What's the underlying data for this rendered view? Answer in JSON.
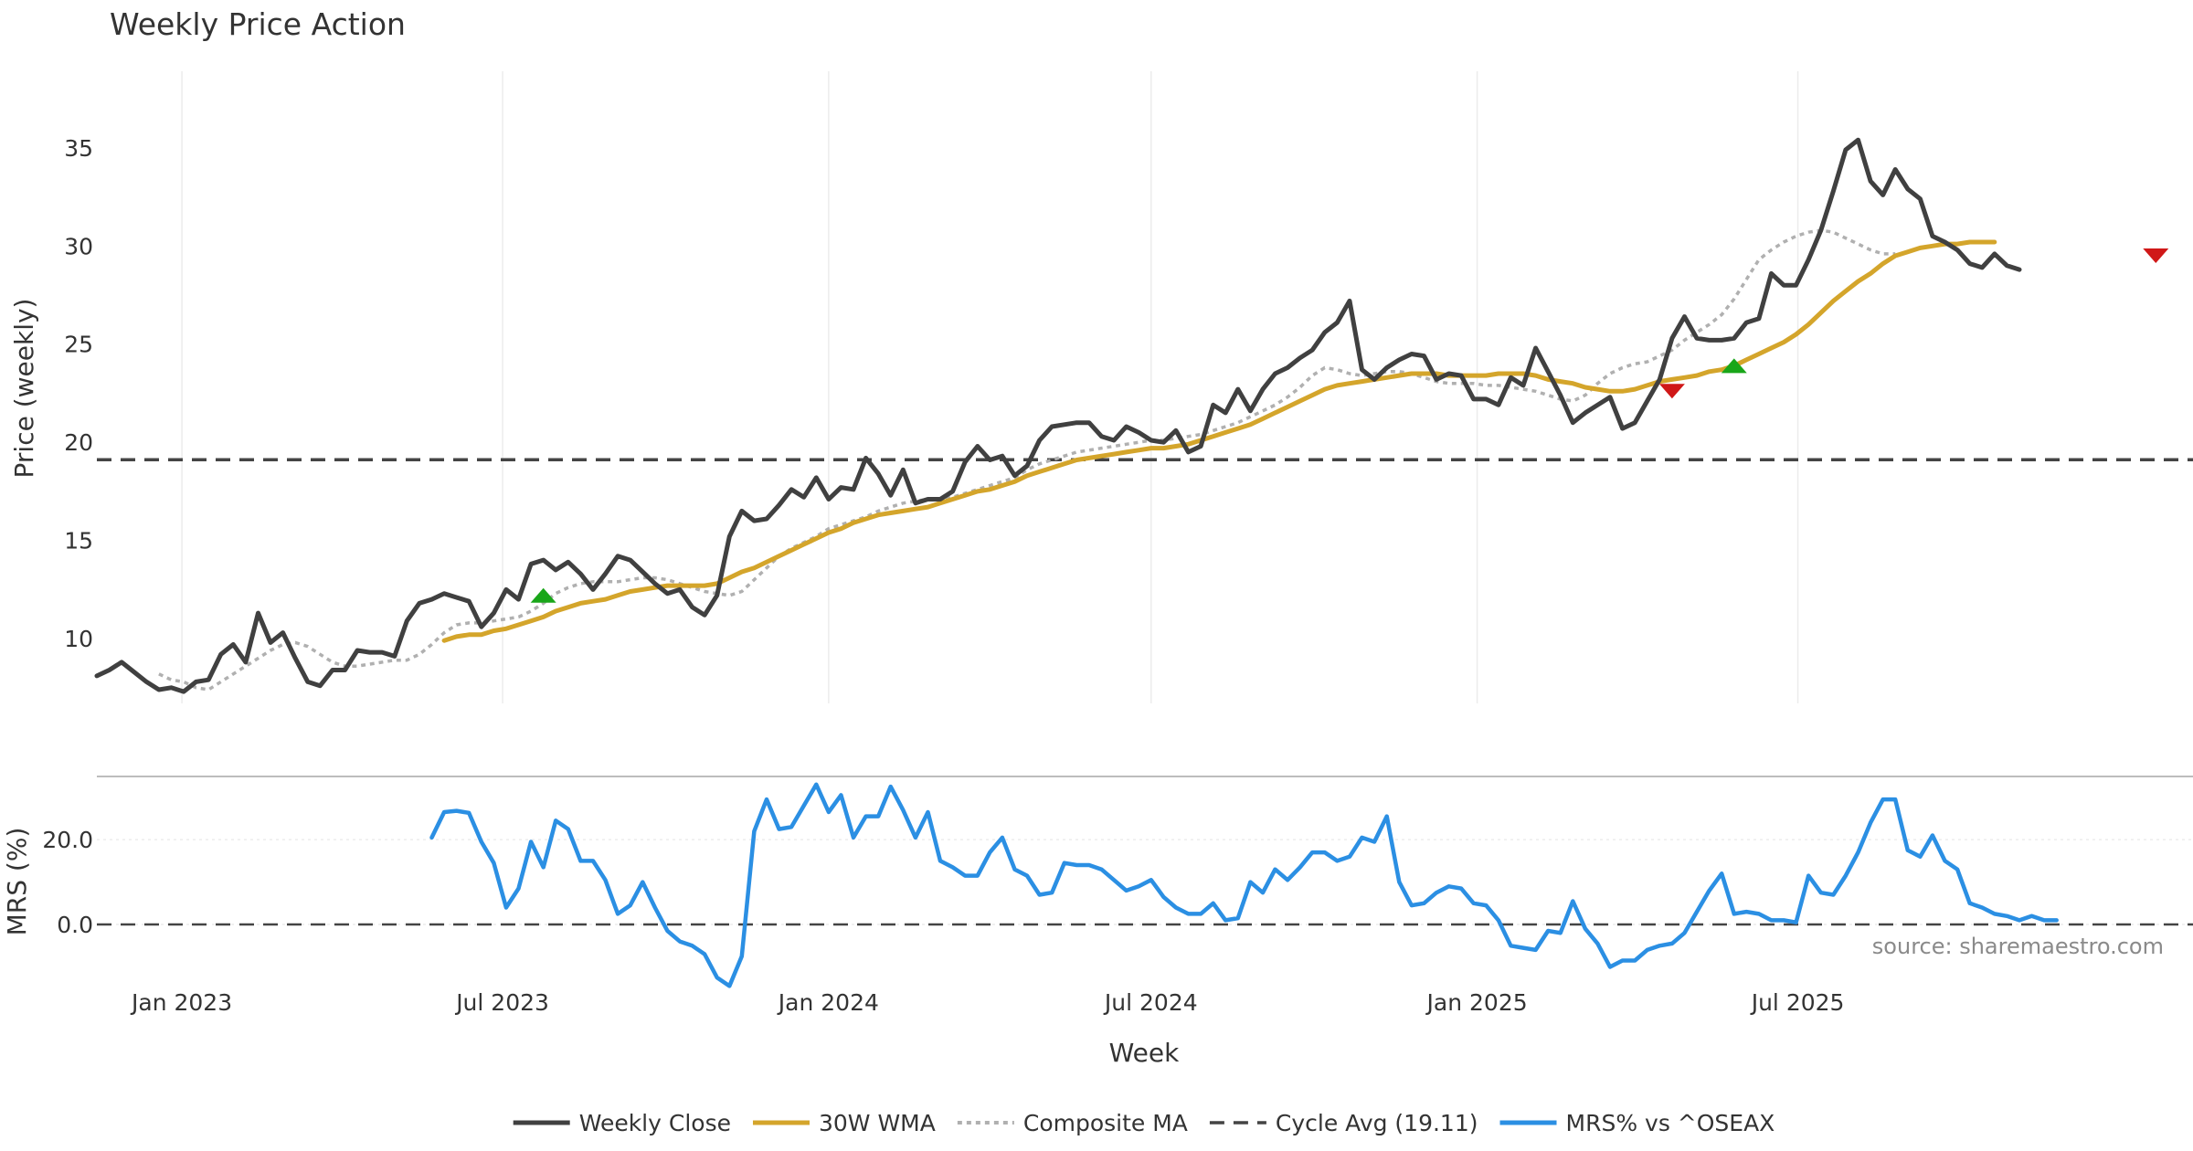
{
  "chart_data": {
    "type": "line",
    "title": "Weekly Price Action",
    "x_label": "Week",
    "x_tick_labels": [
      "Jan 2023",
      "Jul 2023",
      "Jan 2024",
      "Jul 2024",
      "Jan 2025",
      "Jul 2025"
    ],
    "x_tick_dates": [
      "2023-01-01",
      "2023-07-01",
      "2024-01-01",
      "2024-07-01",
      "2025-01-01",
      "2025-07-01"
    ],
    "x_range": [
      "2022-11-14",
      "2026-02-09"
    ],
    "price_panel": {
      "ylabel": "Price (weekly)",
      "ylim": [
        6.7,
        38.9
      ],
      "yticks": [
        10,
        15,
        20,
        25,
        30,
        35
      ],
      "series": [
        {
          "name": "Weekly Close",
          "color": "#404040",
          "style": "solid",
          "start": "2022-11-14",
          "values": [
            8.1,
            8.4,
            8.8,
            8.3,
            7.8,
            7.4,
            7.5,
            7.3,
            7.8,
            7.9,
            9.2,
            9.7,
            8.8,
            11.3,
            9.8,
            10.3,
            9.0,
            7.8,
            7.6,
            8.4,
            8.4,
            9.4,
            9.3,
            9.3,
            9.1,
            10.9,
            11.8,
            12.0,
            12.3,
            12.1,
            11.9,
            10.6,
            11.3,
            12.5,
            12.0,
            13.8,
            14.0,
            13.5,
            13.9,
            13.3,
            12.5,
            13.3,
            14.2,
            14.0,
            13.4,
            12.8,
            12.3,
            12.5,
            11.6,
            11.2,
            12.2,
            15.2,
            16.5,
            16.0,
            16.1,
            16.8,
            17.6,
            17.2,
            18.2,
            17.1,
            17.7,
            17.6,
            19.2,
            18.4,
            17.3,
            18.6,
            16.9,
            17.1,
            17.1,
            17.5,
            19.0,
            19.8,
            19.1,
            19.3,
            18.3,
            18.8,
            20.1,
            20.8,
            20.9,
            21.0,
            21.0,
            20.3,
            20.1,
            20.8,
            20.5,
            20.1,
            20.0,
            20.6,
            19.5,
            19.8,
            21.9,
            21.5,
            22.7,
            21.6,
            22.7,
            23.5,
            23.8,
            24.3,
            24.7,
            25.6,
            26.1,
            27.2,
            23.7,
            23.2,
            23.8,
            24.2,
            24.5,
            24.4,
            23.2,
            23.5,
            23.4,
            22.2,
            22.2,
            21.9,
            23.3,
            22.9,
            24.8,
            23.6,
            22.4,
            21.0,
            21.5,
            21.9,
            22.3,
            20.7,
            21.0,
            22.1,
            23.2,
            25.3,
            26.4,
            25.3,
            25.2,
            25.2,
            25.3,
            26.1,
            26.3,
            28.6,
            28.0,
            28.0,
            29.3,
            30.8,
            32.8,
            34.9,
            35.4,
            33.3,
            32.6,
            33.9,
            32.9,
            32.4,
            30.5,
            30.2,
            29.8,
            29.1,
            28.9,
            29.6,
            29.0,
            28.8
          ]
        },
        {
          "name": "30W WMA",
          "color": "#d4a52b",
          "style": "solid",
          "start": "2023-05-29",
          "values": [
            9.9,
            10.1,
            10.2,
            10.2,
            10.4,
            10.5,
            10.7,
            10.9,
            11.1,
            11.4,
            11.6,
            11.8,
            11.9,
            12.0,
            12.2,
            12.4,
            12.5,
            12.6,
            12.7,
            12.7,
            12.7,
            12.7,
            12.8,
            13.1,
            13.4,
            13.6,
            13.9,
            14.2,
            14.5,
            14.8,
            15.1,
            15.4,
            15.6,
            15.9,
            16.1,
            16.3,
            16.4,
            16.5,
            16.6,
            16.7,
            16.9,
            17.1,
            17.3,
            17.5,
            17.6,
            17.8,
            18.0,
            18.3,
            18.5,
            18.7,
            18.9,
            19.1,
            19.2,
            19.3,
            19.4,
            19.5,
            19.6,
            19.7,
            19.7,
            19.8,
            19.9,
            20.1,
            20.3,
            20.5,
            20.7,
            20.9,
            21.2,
            21.5,
            21.8,
            22.1,
            22.4,
            22.7,
            22.9,
            23.0,
            23.1,
            23.2,
            23.3,
            23.4,
            23.5,
            23.5,
            23.5,
            23.4,
            23.4,
            23.4,
            23.4,
            23.5,
            23.5,
            23.5,
            23.4,
            23.2,
            23.1,
            23.0,
            22.8,
            22.7,
            22.6,
            22.6,
            22.7,
            22.9,
            23.1,
            23.2,
            23.3,
            23.4,
            23.6,
            23.7,
            23.9,
            24.2,
            24.5,
            24.8,
            25.1,
            25.5,
            26.0,
            26.6,
            27.2,
            27.7,
            28.2,
            28.6,
            29.1,
            29.5,
            29.7,
            29.9,
            30.0,
            30.1,
            30.1,
            30.2,
            30.2,
            30.2
          ]
        },
        {
          "name": "Composite MA",
          "color": "#b0b0b0",
          "style": "dotted",
          "start": "2022-12-19",
          "values": [
            8.2,
            7.9,
            7.8,
            7.5,
            7.4,
            7.8,
            8.2,
            8.6,
            9.0,
            9.4,
            9.7,
            9.8,
            9.6,
            9.2,
            8.8,
            8.6,
            8.6,
            8.7,
            8.8,
            8.9,
            8.9,
            9.2,
            9.7,
            10.3,
            10.7,
            10.8,
            10.8,
            10.9,
            11.0,
            11.1,
            11.4,
            11.8,
            12.3,
            12.6,
            12.8,
            12.9,
            12.9,
            12.9,
            13.0,
            13.1,
            13.1,
            13.0,
            12.8,
            12.6,
            12.4,
            12.3,
            12.2,
            12.4,
            13.0,
            13.6,
            14.2,
            14.6,
            14.9,
            15.2,
            15.6,
            15.8,
            16.0,
            16.2,
            16.5,
            16.7,
            16.9,
            17.0,
            17.1,
            17.1,
            17.2,
            17.4,
            17.6,
            17.8,
            18.0,
            18.2,
            18.6,
            18.9,
            19.1,
            19.3,
            19.5,
            19.6,
            19.7,
            19.8,
            19.9,
            20.0,
            20.1,
            20.1,
            20.2,
            20.3,
            20.4,
            20.6,
            20.8,
            21.0,
            21.3,
            21.6,
            21.9,
            22.3,
            22.8,
            23.4,
            23.8,
            23.7,
            23.5,
            23.4,
            23.5,
            23.6,
            23.6,
            23.5,
            23.3,
            23.1,
            23.0,
            23.0,
            23.0,
            22.9,
            22.9,
            22.8,
            22.7,
            22.6,
            22.4,
            22.2,
            22.1,
            22.4,
            23.0,
            23.5,
            23.8,
            24.0,
            24.1,
            24.4,
            24.7,
            25.2,
            25.6,
            26.0,
            26.5,
            27.3,
            28.3,
            29.3,
            29.8,
            30.2,
            30.5,
            30.7,
            30.8,
            30.7,
            30.4,
            30.1,
            29.8,
            29.6,
            29.6
          ]
        },
        {
          "name": "Cycle Avg (19.11)",
          "color": "#444444",
          "style": "dashed",
          "value": 19.11
        }
      ],
      "markers": [
        {
          "type": "buy",
          "date": "2023-07-24",
          "value": 12.2,
          "color": "#19a619"
        },
        {
          "type": "sell",
          "date": "2025-04-21",
          "value": 22.6,
          "color": "#d01818"
        },
        {
          "type": "buy",
          "date": "2025-05-26",
          "value": 23.9,
          "color": "#19a619"
        },
        {
          "type": "sell",
          "date": "2026-01-19",
          "value": 29.5,
          "color": "#d01818"
        }
      ]
    },
    "mrs_panel": {
      "ylabel": "MRS (%)",
      "ylim": [
        -15.5,
        34.9
      ],
      "yticks": [
        0,
        20
      ],
      "ytick_labels": [
        "0.0",
        "20.0"
      ],
      "series": [
        {
          "name": "MRS% vs ^OSEAX",
          "color": "#2b8fe3",
          "style": "solid",
          "start": "2023-05-22",
          "values": [
            20.5,
            26.5,
            26.8,
            26.3,
            19.5,
            14.5,
            4.0,
            8.5,
            19.5,
            13.5,
            24.5,
            22.5,
            15.0,
            15.0,
            10.5,
            2.5,
            4.5,
            10.0,
            4.0,
            -1.5,
            -4.0,
            -5.0,
            -7.0,
            -12.5,
            -14.5,
            -7.5,
            22.0,
            29.5,
            22.5,
            23.0,
            28.0,
            33.0,
            26.5,
            30.5,
            20.5,
            25.5,
            25.5,
            32.5,
            27.0,
            20.5,
            26.5,
            15.0,
            13.5,
            11.5,
            11.5,
            17.0,
            20.5,
            13.0,
            11.5,
            7.0,
            7.5,
            14.5,
            14.0,
            14.0,
            13.0,
            10.5,
            8.0,
            9.0,
            10.5,
            6.5,
            4.0,
            2.5,
            2.5,
            5.0,
            1.0,
            1.5,
            10.0,
            7.5,
            13.0,
            10.5,
            13.5,
            17.0,
            17.0,
            15.0,
            16.0,
            20.5,
            19.5,
            25.5,
            10.0,
            4.5,
            5.0,
            7.5,
            9.0,
            8.5,
            5.0,
            4.5,
            1.0,
            -5.0,
            -5.5,
            -6.0,
            -1.5,
            -2.0,
            5.5,
            -1.0,
            -4.5,
            -10.0,
            -8.5,
            -8.5,
            -6.0,
            -5.0,
            -4.5,
            -2.0,
            3.0,
            8.0,
            12.0,
            2.5,
            3.0,
            2.5,
            1.0,
            1.0,
            0.5,
            11.5,
            7.5,
            7.0,
            11.5,
            17.0,
            24.0,
            29.5,
            29.5,
            17.5,
            16.0,
            21.0,
            15.0,
            13.0,
            5.0,
            4.0,
            2.5,
            2.0,
            1.0,
            2.0,
            1.0,
            1.0
          ]
        },
        {
          "name": "",
          "color": "#444444",
          "style": "dashed",
          "value": 0
        }
      ]
    },
    "legend": {
      "placement": "bottom-center",
      "entries": [
        {
          "label": "Weekly Close",
          "color": "#404040",
          "style": "solid"
        },
        {
          "label": "30W WMA",
          "color": "#d4a52b",
          "style": "solid"
        },
        {
          "label": "Composite MA",
          "color": "#b0b0b0",
          "style": "dotted"
        },
        {
          "label": "Cycle Avg (19.11)",
          "color": "#444444",
          "style": "dashed"
        },
        {
          "label": "MRS% vs ^OSEAX",
          "color": "#2b8fe3",
          "style": "solid"
        }
      ]
    },
    "watermark": "source: sharemaestro.com",
    "grid": true
  }
}
